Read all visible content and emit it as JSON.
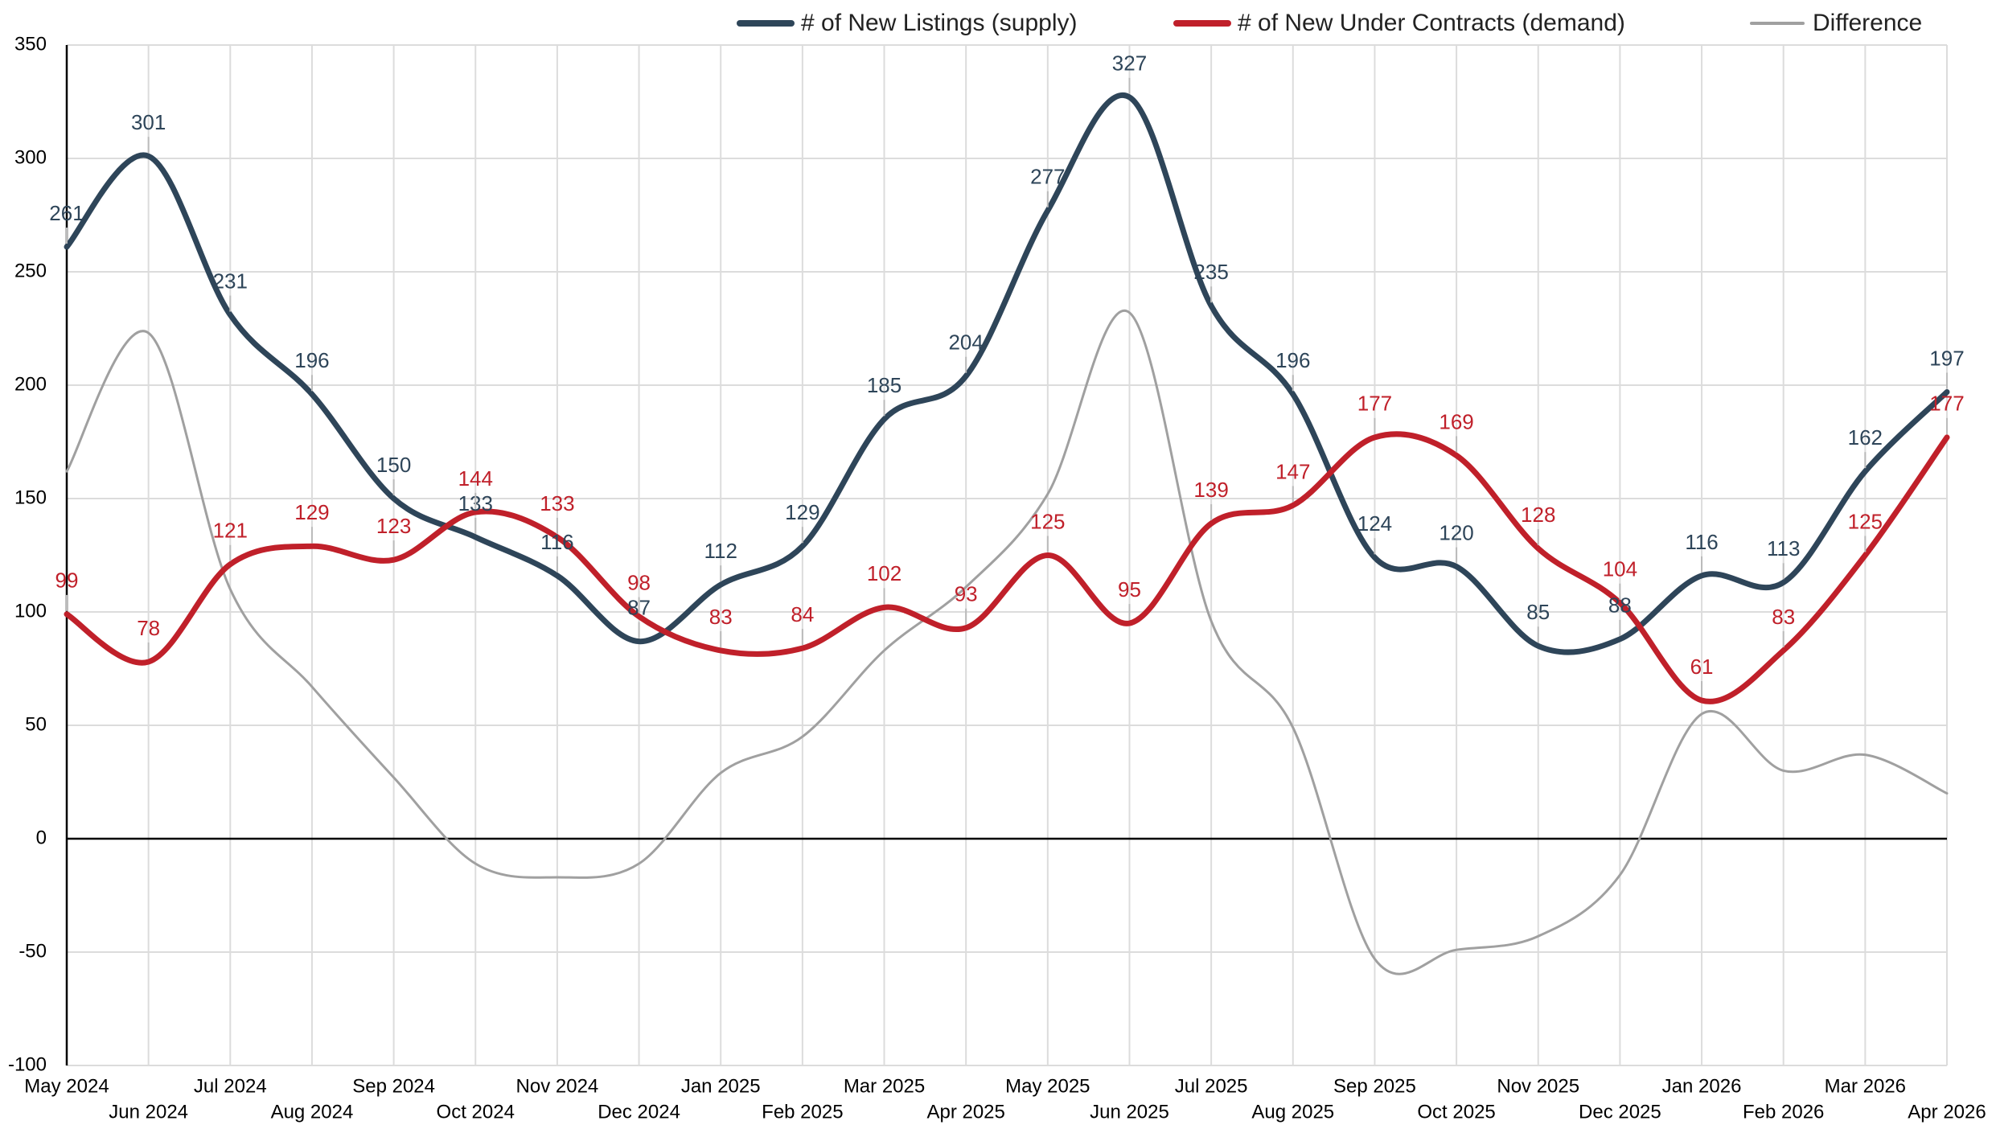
{
  "chart_data": {
    "type": "line",
    "categories": [
      "May 2024",
      "Jun 2024",
      "Jul 2024",
      "Aug 2024",
      "Sep 2024",
      "Oct 2024",
      "Nov 2024",
      "Dec 2024",
      "Jan 2025",
      "Feb 2025",
      "Mar 2025",
      "Apr 2025",
      "May 2025",
      "Jun 2025",
      "Jul 2025",
      "Aug 2025",
      "Sep 2025",
      "Oct 2025",
      "Nov 2025",
      "Dec 2025",
      "Jan 2026",
      "Feb 2026",
      "Mar 2026",
      "Apr 2026"
    ],
    "series": [
      {
        "name": "# of New Listings (supply)",
        "color": "#2e4559",
        "labels": true,
        "values": [
          261,
          301,
          231,
          196,
          150,
          133,
          116,
          87,
          112,
          129,
          185,
          204,
          277,
          327,
          235,
          196,
          124,
          120,
          85,
          88,
          116,
          113,
          162,
          197
        ]
      },
      {
        "name": "# of New Under Contracts (demand)",
        "color": "#c0202a",
        "labels": true,
        "values": [
          99,
          78,
          121,
          129,
          123,
          144,
          133,
          98,
          83,
          84,
          102,
          93,
          125,
          95,
          139,
          147,
          177,
          169,
          128,
          104,
          61,
          83,
          125,
          177
        ]
      },
      {
        "name": "Difference",
        "color": "#a0a0a0",
        "labels": false,
        "values": [
          162,
          223,
          110,
          67,
          27,
          -11,
          -17,
          -11,
          29,
          45,
          83,
          111,
          152,
          232,
          96,
          49,
          -53,
          -49,
          -43,
          -16,
          55,
          30,
          37,
          20
        ]
      }
    ],
    "ylim": [
      -100,
      350
    ],
    "yticks": [
      -100,
      -50,
      0,
      50,
      100,
      150,
      200,
      250,
      300,
      350
    ],
    "grid": true,
    "legend": "top-right"
  }
}
